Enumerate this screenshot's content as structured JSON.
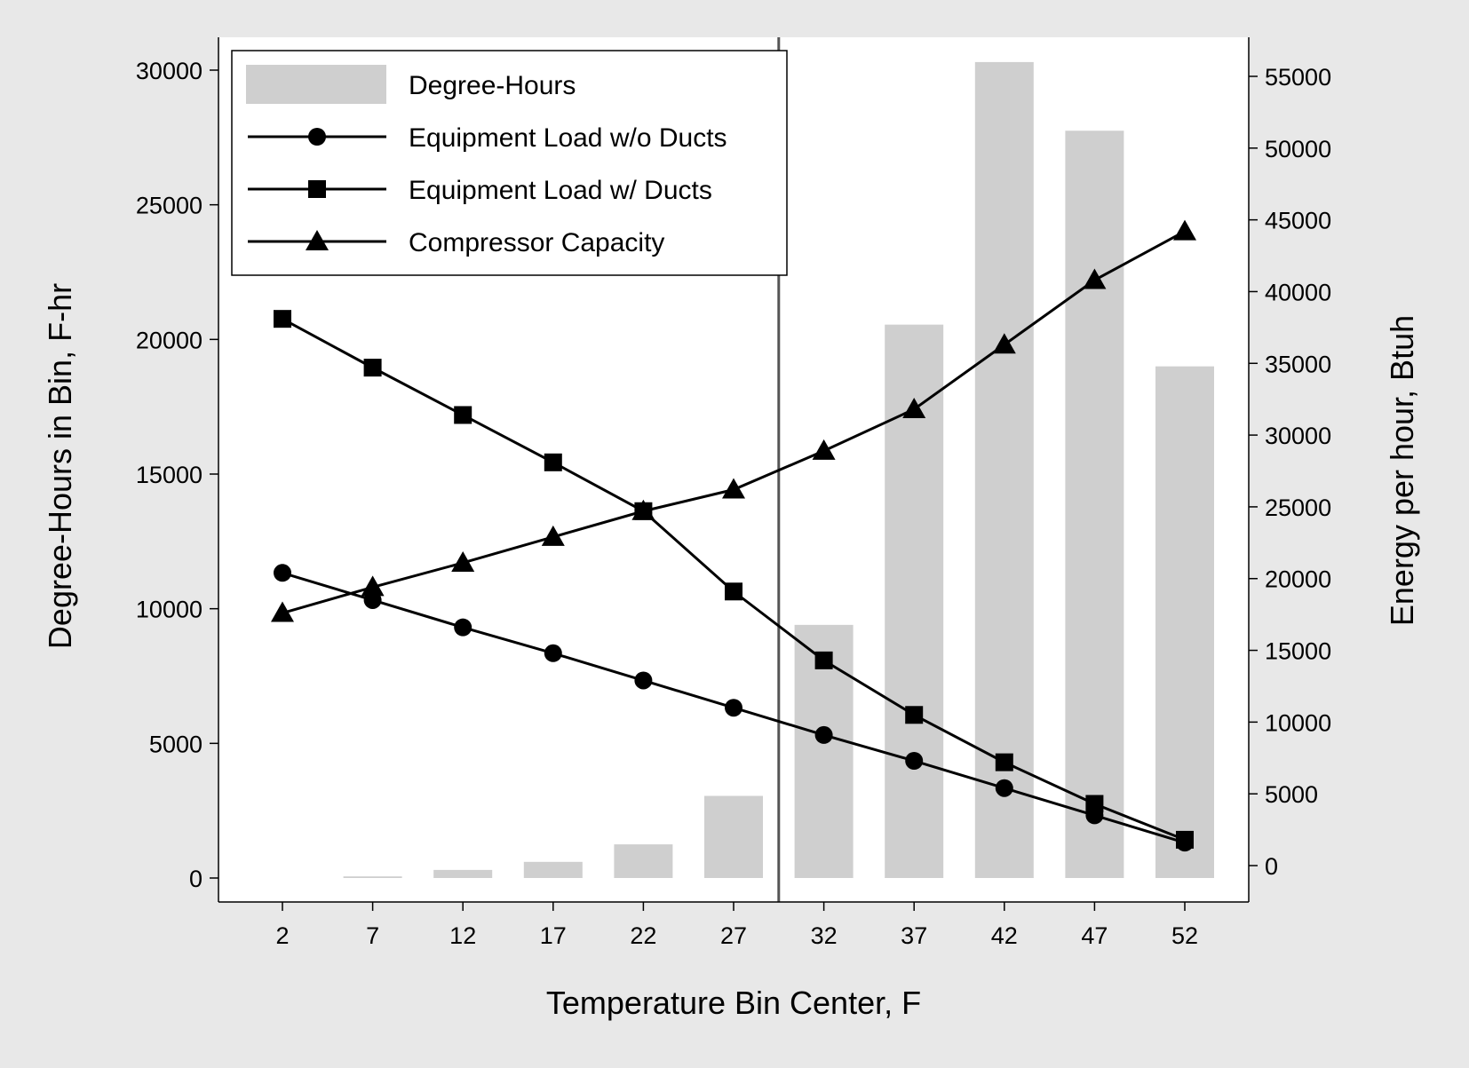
{
  "chart_data": {
    "type": "bar",
    "title": "",
    "xlabel": "Temperature Bin Center, F",
    "ylabel": "Degree-Hours in Bin, F-hr",
    "y2label": "Energy per hour, Btuh",
    "categories": [
      2,
      7,
      12,
      17,
      22,
      27,
      32,
      37,
      42,
      47,
      52
    ],
    "ylim": [
      0,
      30000
    ],
    "yticks": [
      "0",
      "5000",
      "10000",
      "15000",
      "20000",
      "25000",
      "30000"
    ],
    "y2lim": [
      0,
      55000
    ],
    "y2ticks": [
      "0",
      "5000",
      "10000",
      "15000",
      "20000",
      "25000",
      "30000",
      "35000",
      "40000",
      "45000",
      "50000",
      "55000"
    ],
    "legend_position": "top-left",
    "reference_line_x": 29.5,
    "series": [
      {
        "name": "Degree-Hours",
        "type": "bar",
        "axis": "left",
        "color": "#cfcfcf",
        "values": [
          0,
          60,
          300,
          600,
          1250,
          3050,
          9400,
          20550,
          30300,
          27750,
          19000
        ]
      },
      {
        "name": "Equipment Load w/o Ducts",
        "type": "line",
        "axis": "right",
        "marker": "circle",
        "values": [
          20400,
          18500,
          16600,
          14800,
          12900,
          11000,
          9100,
          7300,
          5400,
          3500,
          1600
        ]
      },
      {
        "name": "Equipment Load w/ Ducts",
        "type": "line",
        "axis": "right",
        "marker": "square",
        "values": [
          38100,
          34700,
          31400,
          28100,
          24700,
          19100,
          14300,
          10500,
          7200,
          4300,
          1800
        ]
      },
      {
        "name": "Compressor Capacity",
        "type": "line",
        "axis": "right",
        "marker": "triangle",
        "values": [
          17600,
          19400,
          21100,
          22900,
          24700,
          26200,
          28900,
          31800,
          36300,
          40800,
          44200
        ]
      }
    ]
  }
}
